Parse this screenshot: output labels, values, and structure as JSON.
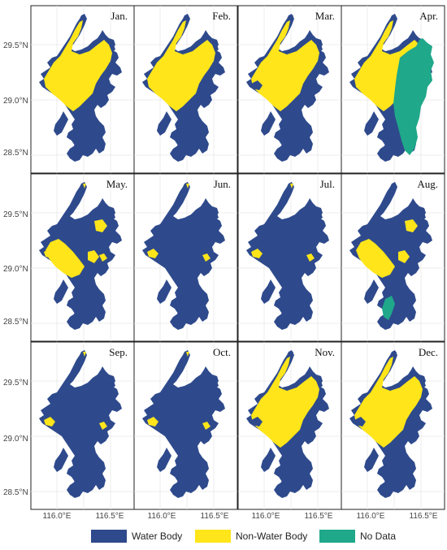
{
  "colors": {
    "water": "#2E4A8C",
    "nonwater": "#FFE51A",
    "nodata": "#1FA889",
    "grid": "#e6e6e6",
    "frame": "#222222"
  },
  "axes": {
    "y_ticks": [
      "29.5°N",
      "29.0°N",
      "28.5°N"
    ],
    "x_ticks": [
      "116.0°E",
      "116.5°E"
    ]
  },
  "panels": [
    {
      "label": "Jan.",
      "state": "mostly-nonwater"
    },
    {
      "label": "Feb.",
      "state": "mostly-nonwater"
    },
    {
      "label": "Mar.",
      "state": "mixed-nonwater"
    },
    {
      "label": "Apr.",
      "state": "nodata-east"
    },
    {
      "label": "May.",
      "state": "mixed"
    },
    {
      "label": "Jun.",
      "state": "mostly-water"
    },
    {
      "label": "Jul.",
      "state": "mostly-water"
    },
    {
      "label": "Aug.",
      "state": "mixed-water-nodata"
    },
    {
      "label": "Sep.",
      "state": "mostly-water"
    },
    {
      "label": "Oct.",
      "state": "mostly-water"
    },
    {
      "label": "Nov.",
      "state": "mixed-nonwater"
    },
    {
      "label": "Dec.",
      "state": "mixed-nonwater"
    }
  ],
  "legend": [
    {
      "label": "Water Body",
      "color": "#2E4A8C"
    },
    {
      "label": "Non-Water Body",
      "color": "#FFE51A"
    },
    {
      "label": "No Data",
      "color": "#1FA889"
    }
  ]
}
